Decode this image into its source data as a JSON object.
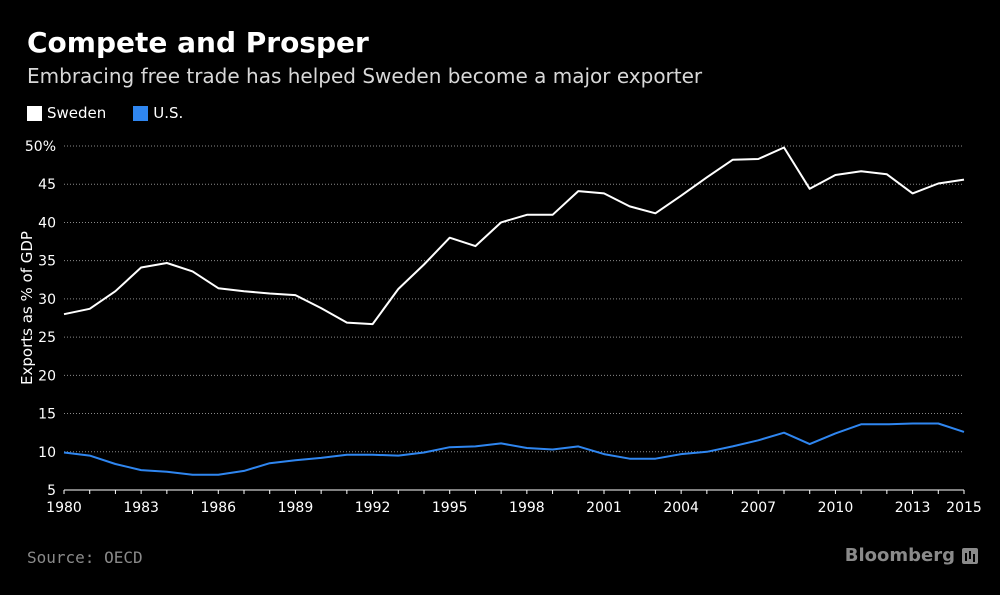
{
  "header": {
    "title": "Compete and Prosper",
    "subtitle": "Embracing free trade has helped Sweden become a major exporter"
  },
  "footer": {
    "source": "Source: OECD",
    "brand": "Bloomberg"
  },
  "colors": {
    "background": "#000000",
    "sweden": "#ffffff",
    "us": "#2f86f0",
    "grid": "#8a8a8a"
  },
  "chart_data": {
    "type": "line",
    "title": "Compete and Prosper",
    "subtitle": "Embracing free trade has helped Sweden become a major exporter",
    "ylabel": "Exports as % of GDP",
    "xlabel": "",
    "xlim": [
      1980,
      2015
    ],
    "ylim": [
      5,
      50
    ],
    "x_ticks": [
      1980,
      1983,
      1986,
      1989,
      1992,
      1995,
      1998,
      2001,
      2004,
      2007,
      2010,
      2013,
      2015
    ],
    "y_ticks": [
      5,
      10,
      15,
      20,
      25,
      30,
      35,
      40,
      45,
      50
    ],
    "y_tick_labels": [
      "5",
      "10",
      "15",
      "20",
      "25",
      "30",
      "35",
      "40",
      "45",
      "50%"
    ],
    "grid": true,
    "legend_position": "top-left",
    "x": [
      1980,
      1981,
      1982,
      1983,
      1984,
      1985,
      1986,
      1987,
      1988,
      1989,
      1990,
      1991,
      1992,
      1993,
      1994,
      1995,
      1996,
      1997,
      1998,
      1999,
      2000,
      2001,
      2002,
      2003,
      2004,
      2005,
      2006,
      2007,
      2008,
      2009,
      2010,
      2011,
      2012,
      2013,
      2014,
      2015
    ],
    "series": [
      {
        "name": "Sweden",
        "color": "#ffffff",
        "values": [
          28.0,
          28.7,
          31.0,
          34.1,
          34.7,
          33.6,
          31.4,
          31.0,
          30.7,
          30.5,
          28.8,
          26.9,
          26.7,
          31.3,
          34.5,
          38.0,
          36.9,
          40.0,
          41.0,
          41.0,
          44.1,
          43.8,
          42.1,
          41.2,
          43.5,
          45.9,
          48.2,
          48.3,
          49.8,
          44.4,
          46.2,
          46.7,
          46.3,
          43.8,
          45.1,
          45.6
        ]
      },
      {
        "name": "U.S.",
        "color": "#2f86f0",
        "values": [
          9.9,
          9.5,
          8.4,
          7.6,
          7.4,
          7.0,
          7.0,
          7.5,
          8.5,
          8.9,
          9.2,
          9.6,
          9.6,
          9.5,
          9.9,
          10.6,
          10.7,
          11.1,
          10.5,
          10.3,
          10.7,
          9.7,
          9.1,
          9.1,
          9.7,
          10.0,
          10.7,
          11.5,
          12.5,
          11.0,
          12.4,
          13.6,
          13.6,
          13.7,
          13.7,
          12.6
        ]
      }
    ]
  }
}
